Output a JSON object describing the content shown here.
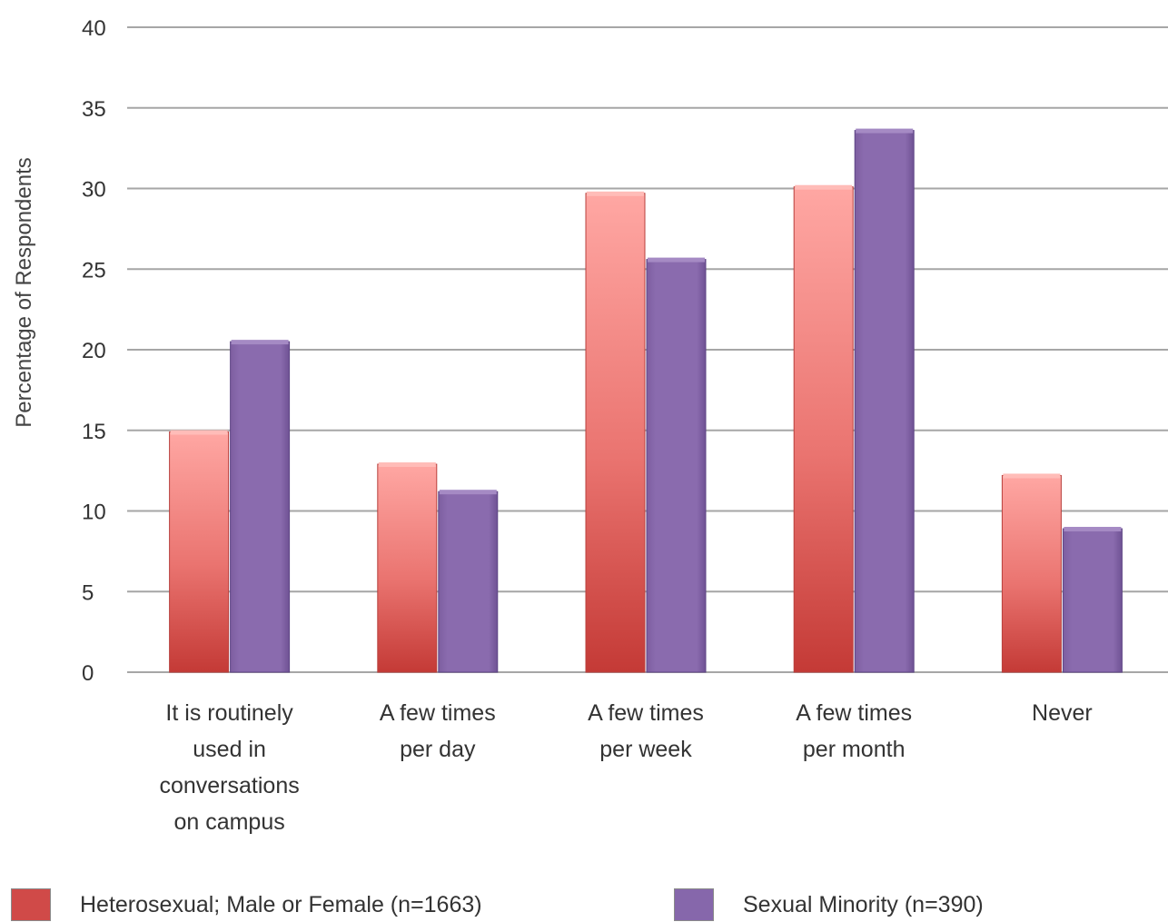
{
  "chart_data": {
    "type": "bar",
    "ylabel": "Percentage of Respondents",
    "ylim": [
      0,
      40
    ],
    "yticks": [
      0,
      5,
      10,
      15,
      20,
      25,
      30,
      35,
      40
    ],
    "grid": true,
    "legend_position": "bottom",
    "categories": [
      [
        "It is routinely",
        "used in",
        "conversations",
        "on campus"
      ],
      [
        "A few times",
        "per day"
      ],
      [
        "A few times",
        "per week"
      ],
      [
        "A few times",
        "per month"
      ],
      [
        "Never"
      ]
    ],
    "series": [
      {
        "name": "Heterosexual; Male or Female (n=1663)",
        "color": "#d04a48",
        "values": [
          14.9,
          12.9,
          29.7,
          30.1,
          12.2
        ]
      },
      {
        "name": "Sexual Minority (n=390)",
        "color": "#8667ab",
        "values": [
          20.5,
          11.2,
          25.6,
          33.6,
          8.9
        ]
      }
    ]
  },
  "legend": {
    "items": [
      {
        "label": "Heterosexual; Male or Female (n=1663)",
        "color": "#d04a48"
      },
      {
        "label": "Sexual Minority (n=390)",
        "color": "#8667ab"
      }
    ]
  }
}
